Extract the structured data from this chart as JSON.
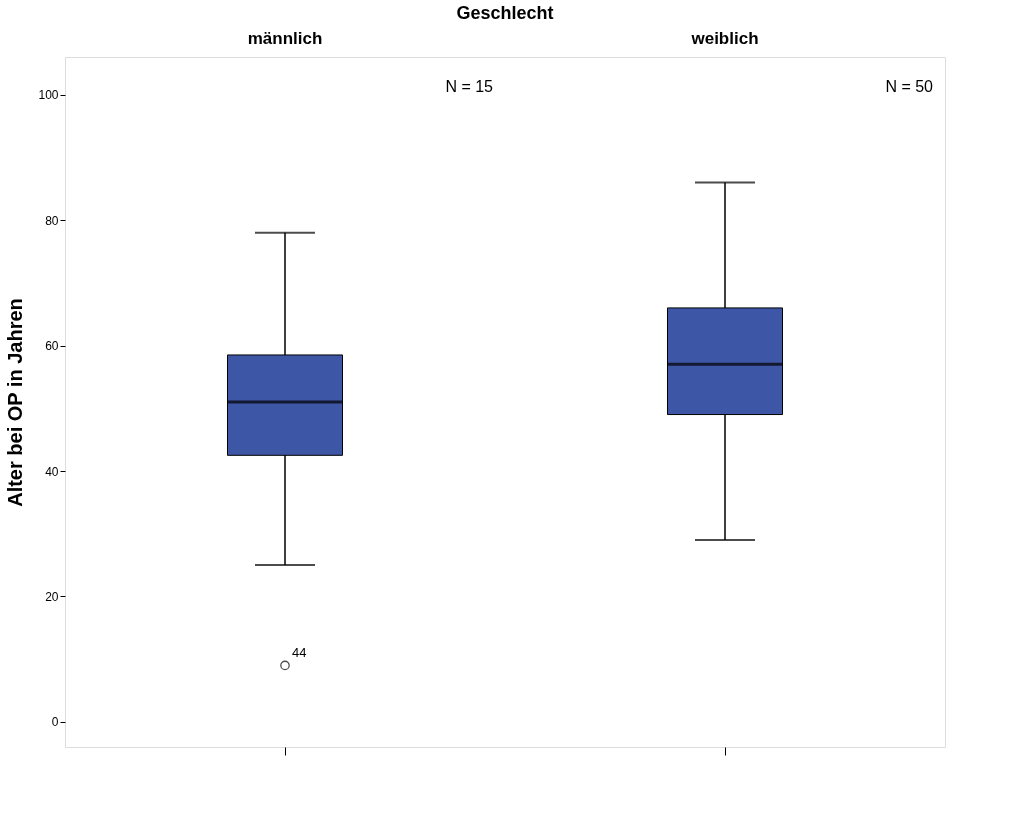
{
  "chart_data": {
    "type": "box",
    "title": "Geschlecht",
    "ylabel": "Alter bei OP in Jahren",
    "categories": [
      "männlich",
      "weiblich"
    ],
    "colors": [
      "#3d56a6",
      "#3d56a6"
    ],
    "boxes": [
      {
        "low": 25,
        "q1": 42.5,
        "median": 51,
        "q3": 58.5,
        "high": 78,
        "outliers": [
          9
        ]
      },
      {
        "low": 29,
        "q1": 49,
        "median": 57,
        "q3": 66,
        "high": 86
      }
    ],
    "ylim": [
      -4,
      106
    ],
    "yticks": [
      0,
      20,
      40,
      60,
      80,
      100
    ],
    "annotations": [
      "N = 15",
      "N = 50",
      "44"
    ]
  }
}
